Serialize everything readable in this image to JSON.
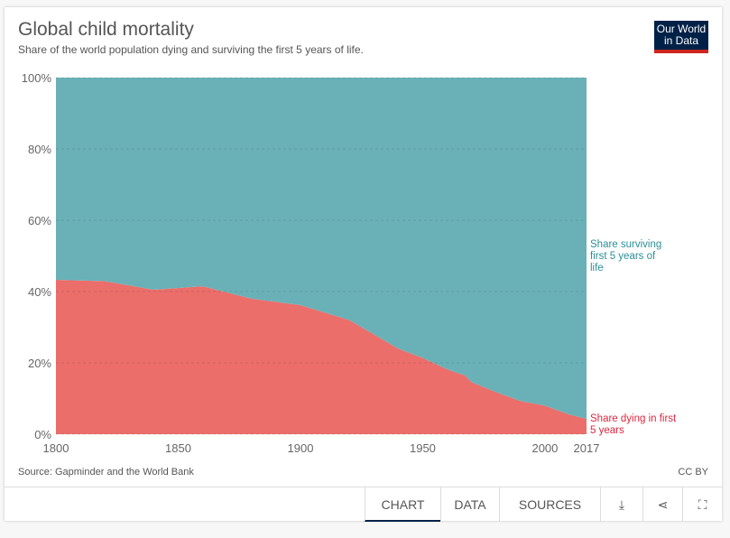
{
  "header": {
    "title": "Global child mortality",
    "subtitle": "Share of the world population dying and surviving the first 5 years of life.",
    "logo_line1": "Our World",
    "logo_line2": "in Data"
  },
  "footer": {
    "source": "Source: Gapminder and the World Bank",
    "license": "CC BY",
    "tabs": [
      {
        "label": "CHART"
      },
      {
        "label": "DATA"
      },
      {
        "label": "SOURCES"
      }
    ],
    "icons": [
      "download-icon",
      "share-icon",
      "fullscreen-icon"
    ]
  },
  "chart_data": {
    "type": "area",
    "stacked": true,
    "title": "Global child mortality",
    "x": [
      1800,
      1820,
      1840,
      1860,
      1880,
      1900,
      1920,
      1930,
      1940,
      1950,
      1960,
      1965,
      1967,
      1970,
      1980,
      1990,
      2000,
      2010,
      2017
    ],
    "series": [
      {
        "name": "Share dying in first 5 years",
        "label": "Share dying in first 5 years",
        "color": "#eb6e6b",
        "values": [
          43.3,
          42.9,
          40.5,
          41.5,
          38,
          36.2,
          32,
          28,
          24,
          21.4,
          18.2,
          17,
          16.6,
          14.6,
          11.8,
          9.3,
          8,
          5.5,
          4.3
        ]
      },
      {
        "name": "Share surviving first 5 years of life",
        "label": "Share surviving first 5 years of life",
        "color": "#6ab1b7",
        "values": [
          56.7,
          57.1,
          59.5,
          58.5,
          62,
          63.8,
          68,
          72,
          76,
          78.6,
          81.8,
          83,
          83.4,
          85.4,
          88.2,
          90.7,
          92,
          94.5,
          95.7
        ]
      }
    ],
    "xticks": [
      "1800",
      "1850",
      "1900",
      "1950",
      "2000",
      "2017"
    ],
    "yticks": [
      "0%",
      "20%",
      "40%",
      "60%",
      "80%",
      "100%"
    ],
    "xlim": [
      1800,
      2017
    ],
    "ylim": [
      0,
      100
    ],
    "grid": true,
    "legend": "right-inline"
  }
}
